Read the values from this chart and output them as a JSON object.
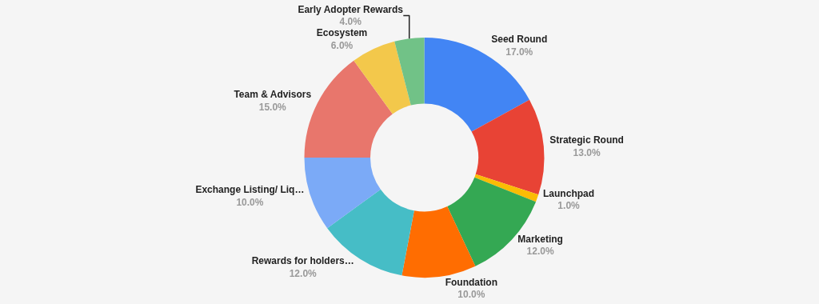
{
  "chart_data": {
    "type": "donut",
    "categories": [
      "Seed Round",
      "Strategic Round",
      "Launchpad",
      "Marketing",
      "Foundation",
      "Rewards for holders…",
      "Exchange Listing/ Liq…",
      "Team & Advisors",
      "Ecosystem",
      "Early Adopter Rewards"
    ],
    "values": [
      17,
      13,
      1,
      12,
      10,
      12,
      10,
      15,
      6,
      4
    ],
    "value_labels": [
      "17.0%",
      "13.0%",
      "1.0%",
      "12.0%",
      "10.0%",
      "12.0%",
      "10.0%",
      "15.0%",
      "6.0%",
      "4.0%"
    ],
    "colors": [
      "#4285f4",
      "#e84335",
      "#fbbc04",
      "#34a853",
      "#ff6d01",
      "#46bdc6",
      "#7baaf7",
      "#e8766c",
      "#f3c84b",
      "#71c287"
    ],
    "legend": false
  }
}
